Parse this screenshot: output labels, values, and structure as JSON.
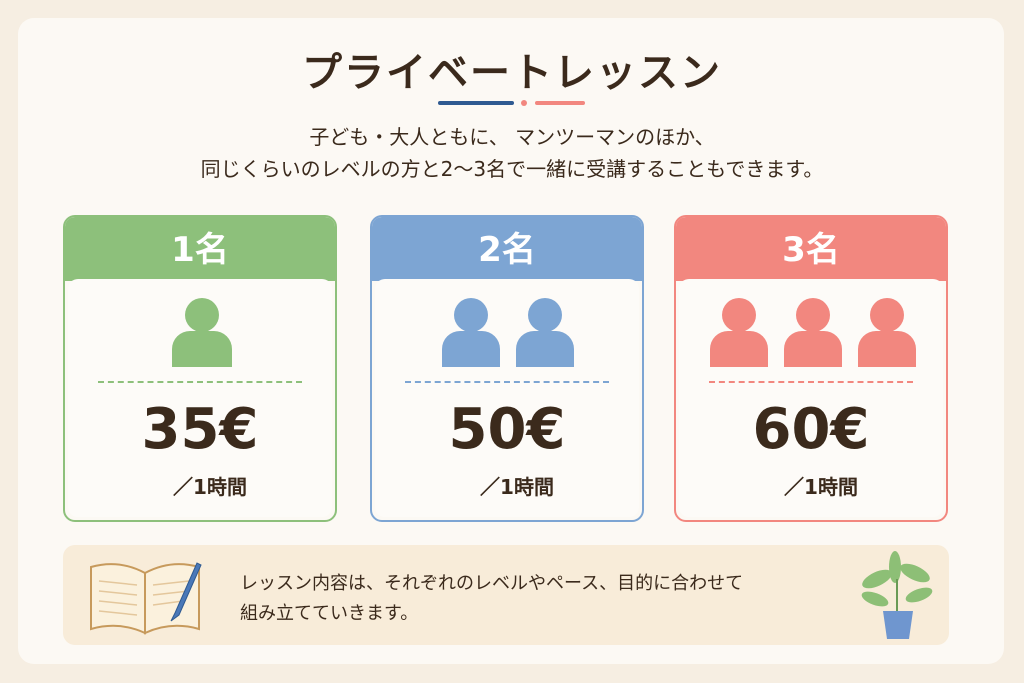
{
  "header": {
    "title": "プライベートレッスン",
    "intro": [
      "子ども・大人ともに、 マンツーマンのほか、",
      "同じくらいのレベルの方と2〜3名で一緒に受講することもできます。"
    ]
  },
  "cards": [
    {
      "label": "1名",
      "price": "35€",
      "unit": "／1時間"
    },
    {
      "label": "2名",
      "price": "50€",
      "unit": "／1時間"
    },
    {
      "label": "3名",
      "price": "60€",
      "unit": "／1時間"
    }
  ],
  "note": [
    "レッスン内容は、それぞれのレベルやペース、目的に合わせて",
    "組み立てていきます。"
  ]
}
